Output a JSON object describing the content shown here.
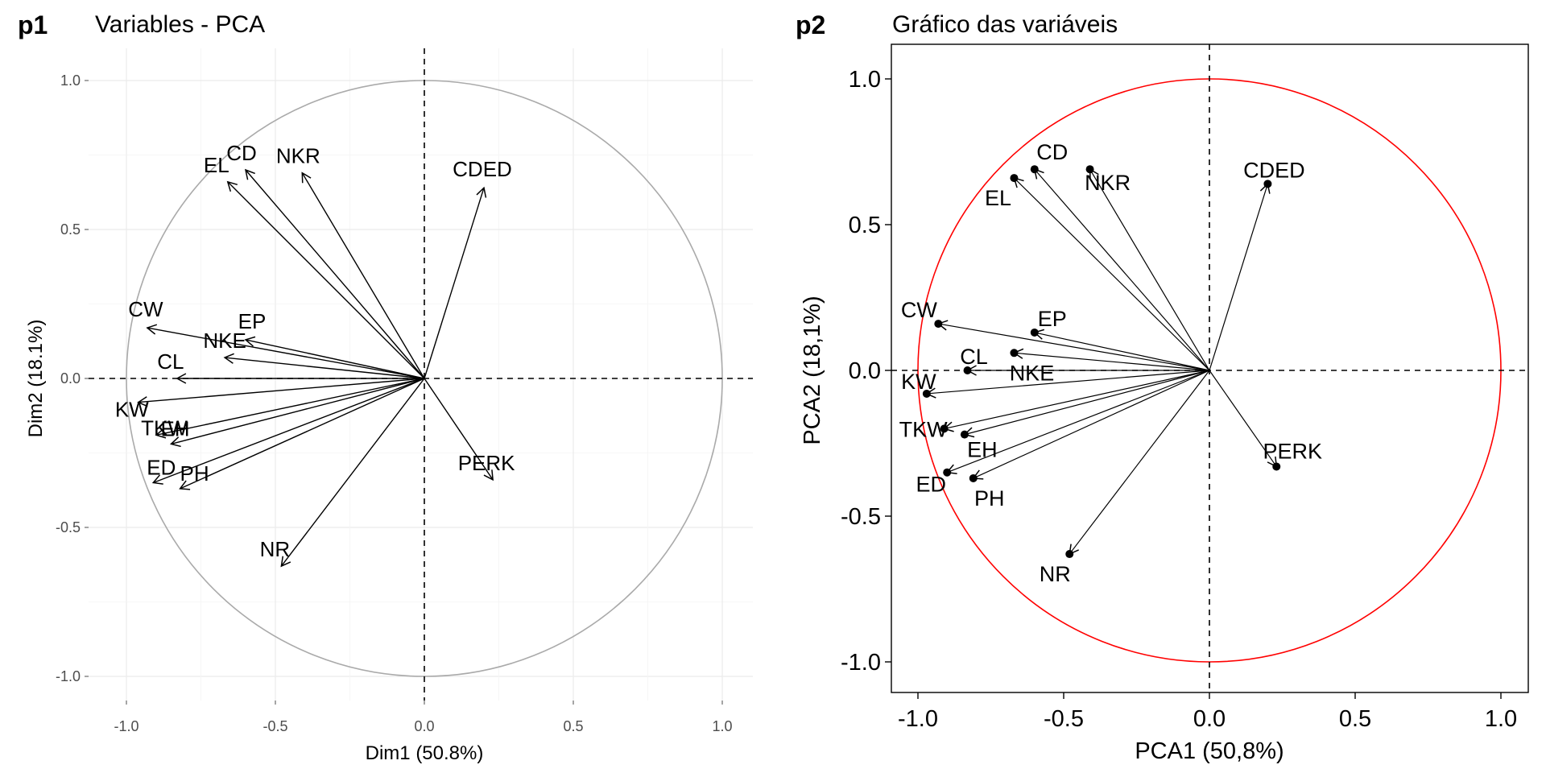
{
  "chart_data": [
    {
      "type": "scatter",
      "tag": "p1",
      "title": "Variables - PCA",
      "xlabel": "Dim1 (50.8%)",
      "ylabel": "Dim2 (18.1%)",
      "xlim": [
        -1.1,
        1.1
      ],
      "ylim": [
        -1.1,
        1.1
      ],
      "xticks": [
        "-1.0",
        "-0.5",
        "0.0",
        "0.5",
        "1.0"
      ],
      "yticks": [
        "1.0",
        "0.5",
        "0.0",
        "-0.5",
        "-1.0"
      ],
      "grid": true,
      "circle_color": "#aaaaaa",
      "variables": [
        {
          "name": "CD",
          "x": -0.6,
          "y": 0.7
        },
        {
          "name": "EL",
          "x": -0.66,
          "y": 0.66
        },
        {
          "name": "NKR",
          "x": -0.41,
          "y": 0.69
        },
        {
          "name": "CDED",
          "x": 0.2,
          "y": 0.64
        },
        {
          "name": "CW",
          "x": -0.93,
          "y": 0.17
        },
        {
          "name": "EP",
          "x": -0.6,
          "y": 0.13
        },
        {
          "name": "NKE",
          "x": -0.67,
          "y": 0.07
        },
        {
          "name": "CL",
          "x": -0.83,
          "y": 0.0
        },
        {
          "name": "KW",
          "x": -0.96,
          "y": -0.08
        },
        {
          "name": "TKW",
          "x": -0.9,
          "y": -0.19
        },
        {
          "name": "EH",
          "x": -0.85,
          "y": -0.22
        },
        {
          "name": "ED",
          "x": -0.91,
          "y": -0.35
        },
        {
          "name": "PH",
          "x": -0.82,
          "y": -0.37
        },
        {
          "name": "PERK",
          "x": 0.23,
          "y": -0.34
        },
        {
          "name": "NR",
          "x": -0.48,
          "y": -0.63
        }
      ]
    },
    {
      "type": "scatter",
      "tag": "p2",
      "title": "Gráfico das variáveis",
      "xlabel": "PCA1 (50,8%)",
      "ylabel": "PCA2 (18,1%)",
      "xlim": [
        -1.1,
        1.1
      ],
      "ylim": [
        -1.1,
        1.1
      ],
      "xticks": [
        "-1.0",
        "-0.5",
        "0.0",
        "0.5",
        "1.0"
      ],
      "yticks": [
        "1.0",
        "0.5",
        "0.0",
        "-0.5",
        "-1.0"
      ],
      "grid": false,
      "circle_color": "#ff0000",
      "variables": [
        {
          "name": "CD",
          "x": -0.6,
          "y": 0.69
        },
        {
          "name": "EL",
          "x": -0.67,
          "y": 0.66
        },
        {
          "name": "NKR",
          "x": -0.41,
          "y": 0.69
        },
        {
          "name": "CDED",
          "x": 0.2,
          "y": 0.64
        },
        {
          "name": "CW",
          "x": -0.93,
          "y": 0.16
        },
        {
          "name": "EP",
          "x": -0.6,
          "y": 0.13
        },
        {
          "name": "NKE",
          "x": -0.67,
          "y": 0.06
        },
        {
          "name": "CL",
          "x": -0.83,
          "y": 0.0
        },
        {
          "name": "KW",
          "x": -0.97,
          "y": -0.08
        },
        {
          "name": "TKW",
          "x": -0.91,
          "y": -0.2
        },
        {
          "name": "EH",
          "x": -0.84,
          "y": -0.22
        },
        {
          "name": "ED",
          "x": -0.9,
          "y": -0.35
        },
        {
          "name": "PH",
          "x": -0.81,
          "y": -0.37
        },
        {
          "name": "PERK",
          "x": 0.23,
          "y": -0.33
        },
        {
          "name": "NR",
          "x": -0.48,
          "y": -0.63
        }
      ]
    }
  ]
}
